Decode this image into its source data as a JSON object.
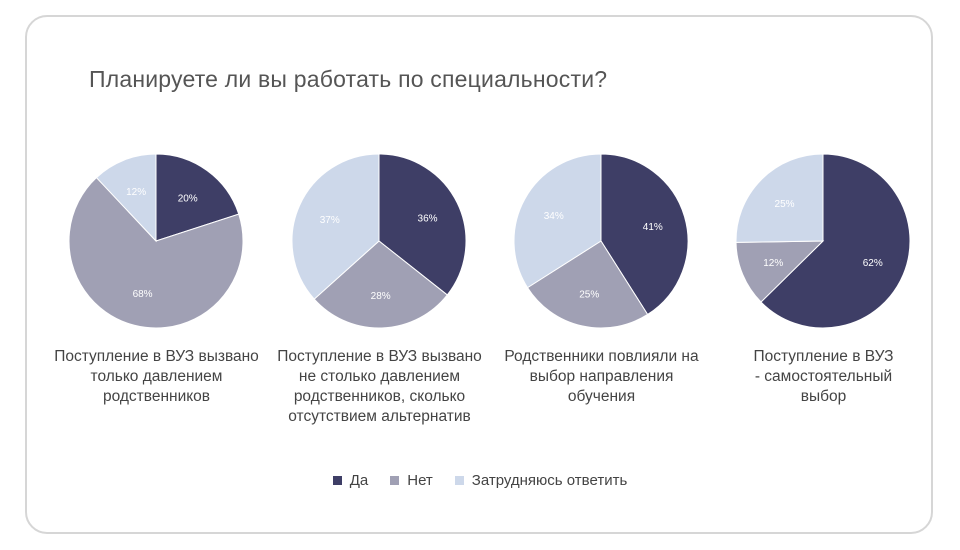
{
  "chart_data": {
    "type": "pie",
    "title": "Планируете ли вы работать по специальности?",
    "legend": {
      "position": "bottom",
      "entries": [
        "Да",
        "Нет",
        "Затрудняюсь ответить"
      ]
    },
    "colors": [
      "#3e3e66",
      "#a0a0b4",
      "#cdd8ea"
    ],
    "pies": [
      {
        "label": "Поступление в ВУЗ вызвано только давлением родственников",
        "values": [
          20,
          68,
          12
        ],
        "labels": [
          "20%",
          "68%",
          "12%"
        ]
      },
      {
        "label": "Поступление в ВУЗ вызвано не столько давлением родственников, сколько отсутствием альтернатив",
        "values": [
          36,
          28,
          37
        ],
        "labels": [
          "36%",
          "28%",
          "37%"
        ]
      },
      {
        "label": "Родственники повлияли на выбор направления обучения",
        "values": [
          41,
          25,
          34
        ],
        "labels": [
          "41%",
          "25%",
          "34%"
        ]
      },
      {
        "label": "Поступление в ВУЗ - самостоятельный выбор",
        "values": [
          62,
          12,
          25
        ],
        "labels": [
          "62%",
          "12%",
          "25%"
        ]
      }
    ]
  }
}
